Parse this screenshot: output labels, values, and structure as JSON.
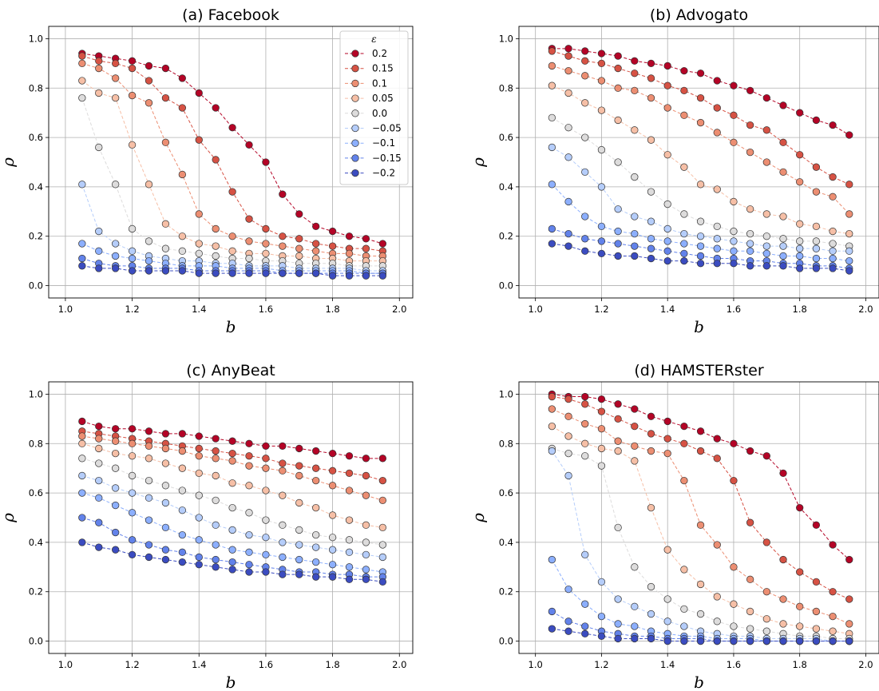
{
  "colors": {
    "0.2": "#b40426",
    "0.15": "#d65244",
    "0.1": "#ec8e72",
    "0.05": "#f6bfa6",
    "0.0": "#dddcdc",
    "-0.05": "#b5cdfa",
    "-0.1": "#8caffe",
    "-0.15": "#6282ea",
    "-0.2": "#3b4cc0"
  },
  "chart_data": [
    {
      "type": "line",
      "title": "(a) Facebook",
      "xlabel": "b",
      "ylabel": "ρ",
      "xlim": [
        0.95,
        2.04
      ],
      "ylim": [
        -0.05,
        1.05
      ],
      "x_ticks": [
        1.0,
        1.2,
        1.4,
        1.6,
        1.8,
        2.0
      ],
      "y_ticks": [
        0.0,
        0.2,
        0.4,
        0.6,
        0.8,
        1.0
      ],
      "grid": true,
      "legend": {
        "title": "ε",
        "placement": "top-right",
        "entries": [
          "0.2",
          "0.15",
          "0.1",
          "0.05",
          "0.0",
          "−0.05",
          "−0.1",
          "−0.15",
          "−0.2"
        ]
      },
      "x": [
        1.05,
        1.1,
        1.15,
        1.2,
        1.25,
        1.3,
        1.35,
        1.4,
        1.45,
        1.5,
        1.55,
        1.6,
        1.65,
        1.7,
        1.75,
        1.8,
        1.85,
        1.9,
        1.95
      ],
      "series": [
        {
          "name": "0.2",
          "values": [
            0.94,
            0.93,
            0.92,
            0.91,
            0.89,
            0.88,
            0.84,
            0.78,
            0.72,
            0.64,
            0.57,
            0.5,
            0.37,
            0.29,
            0.24,
            0.22,
            0.2,
            0.19,
            0.17
          ]
        },
        {
          "name": "0.15",
          "values": [
            0.93,
            0.91,
            0.9,
            0.88,
            0.83,
            0.76,
            0.72,
            0.59,
            0.51,
            0.38,
            0.27,
            0.23,
            0.2,
            0.19,
            0.17,
            0.16,
            0.15,
            0.15,
            0.14
          ]
        },
        {
          "name": "0.1",
          "values": [
            0.9,
            0.88,
            0.84,
            0.77,
            0.74,
            0.58,
            0.45,
            0.29,
            0.23,
            0.2,
            0.18,
            0.17,
            0.16,
            0.15,
            0.14,
            0.13,
            0.13,
            0.12,
            0.12
          ]
        },
        {
          "name": "0.05",
          "values": [
            0.83,
            0.78,
            0.76,
            0.57,
            0.41,
            0.25,
            0.2,
            0.17,
            0.16,
            0.14,
            0.13,
            0.13,
            0.12,
            0.12,
            0.11,
            0.11,
            0.1,
            0.1,
            0.1
          ]
        },
        {
          "name": "0.0",
          "values": [
            0.76,
            0.56,
            0.41,
            0.23,
            0.18,
            0.15,
            0.14,
            0.13,
            0.12,
            0.11,
            0.11,
            0.1,
            0.1,
            0.09,
            0.09,
            0.09,
            0.08,
            0.08,
            0.08
          ]
        },
        {
          "name": "−0.05",
          "values": [
            0.41,
            0.22,
            0.17,
            0.14,
            0.12,
            0.11,
            0.1,
            0.1,
            0.09,
            0.09,
            0.08,
            0.08,
            0.08,
            0.07,
            0.07,
            0.07,
            0.07,
            0.06,
            0.06
          ]
        },
        {
          "name": "−0.1",
          "values": [
            0.17,
            0.14,
            0.12,
            0.11,
            0.1,
            0.09,
            0.08,
            0.08,
            0.08,
            0.07,
            0.07,
            0.07,
            0.06,
            0.06,
            0.06,
            0.06,
            0.06,
            0.05,
            0.05
          ]
        },
        {
          "name": "−0.15",
          "values": [
            0.11,
            0.09,
            0.08,
            0.08,
            0.07,
            0.07,
            0.07,
            0.06,
            0.06,
            0.06,
            0.06,
            0.06,
            0.05,
            0.05,
            0.05,
            0.05,
            0.05,
            0.05,
            0.05
          ]
        },
        {
          "name": "−0.2",
          "values": [
            0.08,
            0.07,
            0.07,
            0.06,
            0.06,
            0.06,
            0.06,
            0.05,
            0.05,
            0.05,
            0.05,
            0.05,
            0.05,
            0.05,
            0.05,
            0.04,
            0.04,
            0.04,
            0.04
          ]
        }
      ]
    },
    {
      "type": "line",
      "title": "(b) Advogato",
      "xlabel": "b",
      "ylabel": "ρ",
      "xlim": [
        0.95,
        2.04
      ],
      "ylim": [
        -0.05,
        1.05
      ],
      "x_ticks": [
        1.0,
        1.2,
        1.4,
        1.6,
        1.8,
        2.0
      ],
      "y_ticks": [
        0.0,
        0.2,
        0.4,
        0.6,
        0.8,
        1.0
      ],
      "grid": true,
      "x": [
        1.05,
        1.1,
        1.15,
        1.2,
        1.25,
        1.3,
        1.35,
        1.4,
        1.45,
        1.5,
        1.55,
        1.6,
        1.65,
        1.7,
        1.75,
        1.8,
        1.85,
        1.9,
        1.95
      ],
      "series": [
        {
          "name": "0.2",
          "values": [
            0.96,
            0.96,
            0.95,
            0.94,
            0.93,
            0.91,
            0.9,
            0.89,
            0.87,
            0.86,
            0.83,
            0.81,
            0.79,
            0.76,
            0.73,
            0.7,
            0.67,
            0.65,
            0.61
          ]
        },
        {
          "name": "0.15",
          "values": [
            0.95,
            0.93,
            0.91,
            0.9,
            0.88,
            0.86,
            0.84,
            0.81,
            0.79,
            0.76,
            0.72,
            0.69,
            0.65,
            0.63,
            0.58,
            0.53,
            0.48,
            0.44,
            0.41
          ]
        },
        {
          "name": "0.1",
          "values": [
            0.89,
            0.87,
            0.85,
            0.83,
            0.8,
            0.79,
            0.76,
            0.72,
            0.69,
            0.66,
            0.62,
            0.58,
            0.54,
            0.5,
            0.46,
            0.42,
            0.38,
            0.36,
            0.29
          ]
        },
        {
          "name": "0.05",
          "values": [
            0.81,
            0.78,
            0.74,
            0.71,
            0.67,
            0.63,
            0.59,
            0.53,
            0.48,
            0.41,
            0.39,
            0.34,
            0.31,
            0.29,
            0.28,
            0.25,
            0.24,
            0.22,
            0.21
          ]
        },
        {
          "name": "0.0",
          "values": [
            0.68,
            0.64,
            0.6,
            0.55,
            0.5,
            0.44,
            0.38,
            0.33,
            0.29,
            0.26,
            0.24,
            0.22,
            0.21,
            0.2,
            0.19,
            0.18,
            0.18,
            0.17,
            0.16
          ]
        },
        {
          "name": "−0.05",
          "values": [
            0.56,
            0.52,
            0.46,
            0.4,
            0.31,
            0.28,
            0.26,
            0.23,
            0.21,
            0.2,
            0.19,
            0.18,
            0.17,
            0.16,
            0.16,
            0.15,
            0.15,
            0.14,
            0.14
          ]
        },
        {
          "name": "−0.1",
          "values": [
            0.41,
            0.34,
            0.28,
            0.24,
            0.22,
            0.21,
            0.19,
            0.18,
            0.17,
            0.16,
            0.15,
            0.14,
            0.14,
            0.13,
            0.12,
            0.12,
            0.11,
            0.11,
            0.1
          ]
        },
        {
          "name": "−0.15",
          "values": [
            0.23,
            0.21,
            0.19,
            0.18,
            0.17,
            0.16,
            0.15,
            0.14,
            0.13,
            0.12,
            0.11,
            0.11,
            0.1,
            0.1,
            0.09,
            0.09,
            0.08,
            0.08,
            0.07
          ]
        },
        {
          "name": "−0.2",
          "values": [
            0.17,
            0.16,
            0.14,
            0.13,
            0.12,
            0.12,
            0.11,
            0.1,
            0.1,
            0.09,
            0.09,
            0.09,
            0.08,
            0.08,
            0.08,
            0.07,
            0.07,
            0.07,
            0.06
          ]
        }
      ]
    },
    {
      "type": "line",
      "title": "(c) AnyBeat",
      "xlabel": "b",
      "ylabel": "ρ",
      "xlim": [
        0.95,
        2.04
      ],
      "ylim": [
        -0.05,
        1.05
      ],
      "x_ticks": [
        1.0,
        1.2,
        1.4,
        1.6,
        1.8,
        2.0
      ],
      "y_ticks": [
        0.0,
        0.2,
        0.4,
        0.6,
        0.8,
        1.0
      ],
      "grid": true,
      "x": [
        1.05,
        1.1,
        1.15,
        1.2,
        1.25,
        1.3,
        1.35,
        1.4,
        1.45,
        1.5,
        1.55,
        1.6,
        1.65,
        1.7,
        1.75,
        1.8,
        1.85,
        1.9,
        1.95
      ],
      "series": [
        {
          "name": "0.2",
          "values": [
            0.89,
            0.87,
            0.86,
            0.86,
            0.85,
            0.84,
            0.84,
            0.83,
            0.82,
            0.81,
            0.8,
            0.79,
            0.79,
            0.78,
            0.77,
            0.76,
            0.75,
            0.74,
            0.74
          ]
        },
        {
          "name": "0.15",
          "values": [
            0.85,
            0.84,
            0.83,
            0.82,
            0.81,
            0.8,
            0.79,
            0.78,
            0.77,
            0.76,
            0.75,
            0.74,
            0.72,
            0.71,
            0.7,
            0.69,
            0.68,
            0.67,
            0.65
          ]
        },
        {
          "name": "0.1",
          "values": [
            0.83,
            0.82,
            0.81,
            0.8,
            0.79,
            0.78,
            0.77,
            0.75,
            0.74,
            0.73,
            0.71,
            0.7,
            0.69,
            0.67,
            0.65,
            0.63,
            0.61,
            0.59,
            0.57
          ]
        },
        {
          "name": "0.05",
          "values": [
            0.8,
            0.78,
            0.76,
            0.75,
            0.74,
            0.72,
            0.7,
            0.68,
            0.67,
            0.64,
            0.63,
            0.61,
            0.59,
            0.56,
            0.54,
            0.51,
            0.49,
            0.47,
            0.46
          ]
        },
        {
          "name": "0.0",
          "values": [
            0.74,
            0.72,
            0.7,
            0.67,
            0.65,
            0.63,
            0.61,
            0.59,
            0.57,
            0.54,
            0.52,
            0.49,
            0.47,
            0.45,
            0.43,
            0.42,
            0.41,
            0.4,
            0.39
          ]
        },
        {
          "name": "−0.05",
          "values": [
            0.67,
            0.65,
            0.62,
            0.6,
            0.58,
            0.56,
            0.53,
            0.5,
            0.47,
            0.45,
            0.43,
            0.42,
            0.4,
            0.39,
            0.38,
            0.37,
            0.36,
            0.35,
            0.34
          ]
        },
        {
          "name": "−0.1",
          "values": [
            0.6,
            0.58,
            0.55,
            0.52,
            0.49,
            0.46,
            0.43,
            0.41,
            0.39,
            0.37,
            0.36,
            0.35,
            0.34,
            0.33,
            0.32,
            0.31,
            0.3,
            0.29,
            0.28
          ]
        },
        {
          "name": "−0.15",
          "values": [
            0.5,
            0.48,
            0.44,
            0.41,
            0.39,
            0.37,
            0.36,
            0.34,
            0.33,
            0.32,
            0.31,
            0.3,
            0.29,
            0.28,
            0.28,
            0.27,
            0.27,
            0.26,
            0.26
          ]
        },
        {
          "name": "−0.2",
          "values": [
            0.4,
            0.38,
            0.37,
            0.35,
            0.34,
            0.33,
            0.32,
            0.31,
            0.3,
            0.29,
            0.28,
            0.28,
            0.27,
            0.27,
            0.26,
            0.26,
            0.25,
            0.25,
            0.24
          ]
        }
      ]
    },
    {
      "type": "line",
      "title": "(d) HAMSTERster",
      "xlabel": "b",
      "ylabel": "ρ",
      "xlim": [
        0.95,
        2.04
      ],
      "ylim": [
        -0.05,
        1.05
      ],
      "x_ticks": [
        1.0,
        1.2,
        1.4,
        1.6,
        1.8,
        2.0
      ],
      "y_ticks": [
        0.0,
        0.2,
        0.4,
        0.6,
        0.8,
        1.0
      ],
      "grid": true,
      "x": [
        1.05,
        1.1,
        1.15,
        1.2,
        1.25,
        1.3,
        1.35,
        1.4,
        1.45,
        1.5,
        1.55,
        1.6,
        1.65,
        1.7,
        1.75,
        1.8,
        1.85,
        1.9,
        1.95
      ],
      "series": [
        {
          "name": "0.2",
          "values": [
            1.0,
            0.99,
            0.99,
            0.98,
            0.96,
            0.94,
            0.91,
            0.89,
            0.87,
            0.85,
            0.82,
            0.8,
            0.77,
            0.75,
            0.68,
            0.54,
            0.47,
            0.39,
            0.33
          ]
        },
        {
          "name": "0.15",
          "values": [
            0.99,
            0.98,
            0.96,
            0.93,
            0.9,
            0.87,
            0.84,
            0.82,
            0.8,
            0.77,
            0.74,
            0.65,
            0.48,
            0.4,
            0.33,
            0.28,
            0.24,
            0.2,
            0.17
          ]
        },
        {
          "name": "0.1",
          "values": [
            0.94,
            0.91,
            0.88,
            0.86,
            0.81,
            0.79,
            0.77,
            0.76,
            0.65,
            0.47,
            0.39,
            0.3,
            0.25,
            0.2,
            0.17,
            0.14,
            0.12,
            0.1,
            0.07
          ]
        },
        {
          "name": "0.05",
          "values": [
            0.87,
            0.83,
            0.8,
            0.78,
            0.77,
            0.73,
            0.54,
            0.37,
            0.29,
            0.23,
            0.18,
            0.15,
            0.12,
            0.09,
            0.07,
            0.06,
            0.05,
            0.04,
            0.03
          ]
        },
        {
          "name": "0.0",
          "values": [
            0.78,
            0.76,
            0.75,
            0.71,
            0.46,
            0.3,
            0.22,
            0.17,
            0.13,
            0.11,
            0.08,
            0.06,
            0.05,
            0.04,
            0.03,
            0.02,
            0.02,
            0.01,
            0.01
          ]
        },
        {
          "name": "−0.05",
          "values": [
            0.77,
            0.67,
            0.35,
            0.24,
            0.17,
            0.14,
            0.11,
            0.08,
            0.06,
            0.04,
            0.03,
            0.02,
            0.02,
            0.01,
            0.01,
            0.01,
            0.01,
            0.0,
            0.0
          ]
        },
        {
          "name": "−0.1",
          "values": [
            0.33,
            0.21,
            0.15,
            0.1,
            0.07,
            0.06,
            0.04,
            0.03,
            0.02,
            0.02,
            0.01,
            0.01,
            0.01,
            0.0,
            0.0,
            0.0,
            0.0,
            0.0,
            0.0
          ]
        },
        {
          "name": "−0.15",
          "values": [
            0.12,
            0.08,
            0.06,
            0.04,
            0.03,
            0.02,
            0.02,
            0.01,
            0.01,
            0.01,
            0.0,
            0.0,
            0.0,
            0.0,
            0.0,
            0.0,
            0.0,
            0.0,
            0.0
          ]
        },
        {
          "name": "−0.2",
          "values": [
            0.05,
            0.04,
            0.03,
            0.02,
            0.01,
            0.01,
            0.01,
            0.0,
            0.0,
            0.0,
            0.0,
            0.0,
            0.0,
            0.0,
            0.0,
            0.0,
            0.0,
            0.0,
            0.0
          ]
        }
      ]
    }
  ]
}
